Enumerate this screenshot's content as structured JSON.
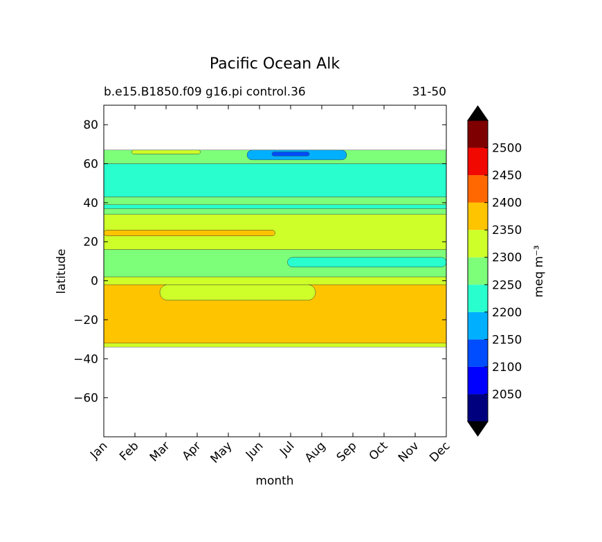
{
  "chart_data": {
    "type": "heatmap",
    "title": "Pacific Ocean Alk",
    "subtitle_left": "b.e15.B1850.f09 g16.pi control.36",
    "subtitle_right": "31-50",
    "xlabel": "month",
    "ylabel": "latitude",
    "x_categories": [
      "Jan",
      "Feb",
      "Mar",
      "Apr",
      "May",
      "Jun",
      "Jul",
      "Aug",
      "Sep",
      "Oct",
      "Nov",
      "Dec"
    ],
    "ylim": [
      -80,
      90
    ],
    "y_ticks": [
      80,
      60,
      40,
      20,
      0,
      -20,
      -40,
      -60
    ],
    "y_tick_labels": [
      "80",
      "60",
      "40",
      "20",
      "0",
      "−20",
      "−40",
      "−60"
    ],
    "colorbar": {
      "label": "meq m⁻³",
      "levels": [
        2000,
        2050,
        2100,
        2150,
        2200,
        2250,
        2300,
        2350,
        2400,
        2450,
        2500,
        2550
      ],
      "tick_labels": [
        "2050",
        "2100",
        "2150",
        "2200",
        "2250",
        "2300",
        "2350",
        "2400",
        "2450",
        "2500"
      ],
      "colors": [
        "#00007f",
        "#0000ff",
        "#004cff",
        "#00b0ff",
        "#29ffce",
        "#7dff7a",
        "#ceff29",
        "#ffc400",
        "#ff6800",
        "#f10800",
        "#7f0000"
      ],
      "extend_color": "#000000"
    },
    "data_extent": {
      "lat_min": -34,
      "lat_max": 67
    },
    "bands": [
      {
        "level": 2325,
        "color": "#ceff29",
        "lat": [
          -34,
          -32
        ]
      },
      {
        "level": 2375,
        "color": "#ffc400",
        "lat": [
          -32,
          -2
        ]
      },
      {
        "level": 2325,
        "color": "#ceff29",
        "lat": [
          -2,
          2
        ]
      },
      {
        "level": 2275,
        "color": "#7dff7a",
        "lat": [
          2,
          16
        ]
      },
      {
        "level": 2325,
        "color": "#ceff29",
        "lat": [
          16,
          34
        ]
      },
      {
        "level": 2275,
        "color": "#7dff7a",
        "lat": [
          34,
          37
        ]
      },
      {
        "level": 2225,
        "color": "#29ffce",
        "lat": [
          37,
          39
        ]
      },
      {
        "level": 2275,
        "color": "#7dff7a",
        "lat": [
          39,
          43
        ]
      },
      {
        "level": 2225,
        "color": "#29ffce",
        "lat": [
          43,
          60
        ]
      },
      {
        "level": 2275,
        "color": "#7dff7a",
        "lat": [
          60,
          67
        ]
      }
    ],
    "features": [
      {
        "level": 2375,
        "color": "#ffc400",
        "months": [
          0,
          5.5
        ],
        "lat": [
          23,
          26
        ],
        "note": "Jan-Jun"
      },
      {
        "level": 2325,
        "color": "#ceff29",
        "months": [
          1.8,
          6.8
        ],
        "lat": [
          -10,
          -2
        ],
        "note": "Feb-Jul"
      },
      {
        "level": 2225,
        "color": "#29ffce",
        "months": [
          5.9,
          11
        ],
        "lat": [
          7,
          12
        ],
        "note": "Jul-Dec"
      },
      {
        "level": 2175,
        "color": "#00b0ff",
        "months": [
          4.6,
          7.8
        ],
        "lat": [
          62,
          67
        ],
        "note": "Jun-Aug"
      },
      {
        "level": 2125,
        "color": "#004cff",
        "months": [
          5.4,
          6.6
        ],
        "lat": [
          64,
          66
        ],
        "note": "Jul"
      },
      {
        "level": 2325,
        "color": "#ceff29",
        "months": [
          0.9,
          3.1
        ],
        "lat": [
          65,
          67
        ],
        "note": "Feb-Apr"
      }
    ]
  }
}
